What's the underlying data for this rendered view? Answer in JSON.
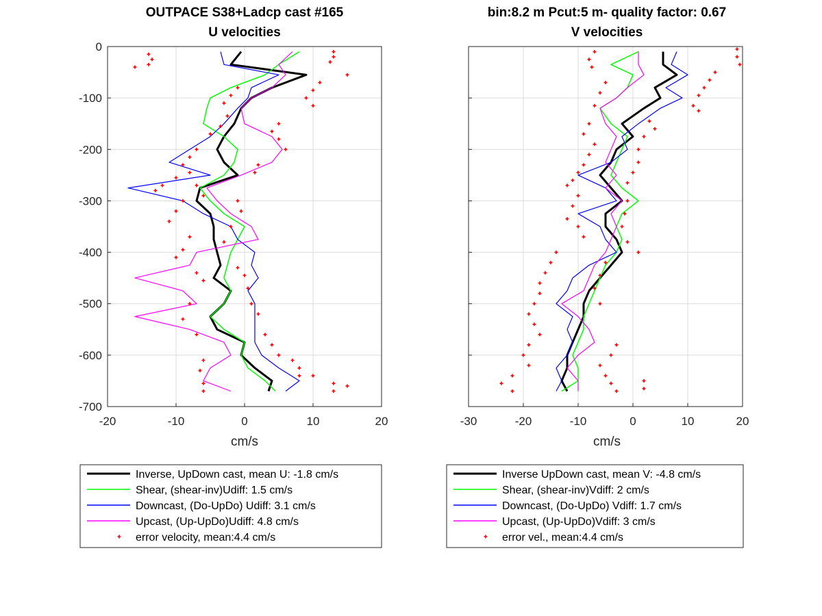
{
  "figure": {
    "background": "#ffffff"
  },
  "legend_items_left": [
    {
      "label": "Inverse, UpDown cast, mean U:  -1.8 cm/s",
      "color": "#000000",
      "style": "thick-line"
    },
    {
      "label": "Shear, (shear-inv)Udiff:  1.5 cm/s",
      "color": "#00ff00",
      "style": "line"
    },
    {
      "label": "Downcast, (Do-UpDo) Udiff:  3.1 cm/s",
      "color": "#0000ff",
      "style": "line"
    },
    {
      "label": "Upcast, (Up-UpDo)Udiff:  4.8 cm/s",
      "color": "#ff00ff",
      "style": "line"
    },
    {
      "label": "error velocity, mean:4.4 cm/s",
      "color": "#ff0000",
      "style": "marker"
    }
  ],
  "legend_items_right": [
    {
      "label": "Inverse UpDown cast, mean V:  -4.8 cm/s",
      "color": "#000000",
      "style": "thick-line"
    },
    {
      "label": "Shear, (shear-inv)Vdiff:  2 cm/s",
      "color": "#00ff00",
      "style": "line"
    },
    {
      "label": "Downcast, (Do-UpDo) Vdiff:  1.7 cm/s",
      "color": "#0000ff",
      "style": "line"
    },
    {
      "label": "Upcast, (Up-UpDo)Vdiff:  3 cm/s",
      "color": "#ff00ff",
      "style": "line"
    },
    {
      "label": "error vel., mean:4.4 cm/s",
      "color": "#ff0000",
      "style": "marker"
    }
  ],
  "chart_data": [
    {
      "type": "line",
      "title": "OUTPACE S38+Ladcp cast #165",
      "subtitle": "U velocities",
      "xlabel": "cm/s",
      "ylabel": "",
      "xlim": [
        -20,
        20
      ],
      "ylim": [
        -700,
        0
      ],
      "xticks": [
        -20,
        -10,
        0,
        10,
        20
      ],
      "yticks": [
        0,
        -100,
        -200,
        -300,
        -400,
        -500,
        -600,
        -700
      ],
      "grid": true,
      "legend_position": "below",
      "depth": [
        -10,
        -35,
        -55,
        -80,
        -100,
        -120,
        -150,
        -175,
        -200,
        -225,
        -250,
        -275,
        -300,
        -325,
        -350,
        -375,
        -400,
        -425,
        -450,
        -475,
        -500,
        -525,
        -550,
        -575,
        -600,
        -625,
        -650,
        -670
      ],
      "series": [
        {
          "name": "Inverse, UpDown cast, mean U:  -1.8 cm/s",
          "color": "#000000",
          "width": 3,
          "values": [
            -0.5,
            -2,
            9,
            4,
            1,
            -0.5,
            -1.5,
            -3,
            -4,
            -3,
            -1,
            -6.5,
            -7,
            -5,
            -4.5,
            -4.5,
            -4,
            -3.5,
            -4.5,
            -2,
            -3,
            -5,
            -4,
            0,
            -0.5,
            1.5,
            4,
            3.5
          ]
        },
        {
          "name": "Shear, (shear-inv)Udiff:  1.5 cm/s",
          "color": "#00ff00",
          "width": 1.5,
          "values": [
            8,
            5,
            3,
            -2,
            -5,
            -5.5,
            -6,
            -3,
            -1,
            -1.5,
            -3,
            -6.5,
            -5,
            -3,
            0,
            -1,
            -2,
            -2.5,
            -3,
            -2,
            -3,
            -5,
            -3,
            0,
            -0.5,
            0.5,
            3,
            4.5
          ]
        },
        {
          "name": "Downcast, (Do-UpDo) Udiff:  3.1 cm/s",
          "color": "#0000ff",
          "width": 1.2,
          "values": [
            -3.5,
            -3,
            5,
            1,
            0.5,
            -1,
            -3,
            -5,
            -8,
            -11,
            -5,
            -17,
            -9,
            -6,
            -2,
            -1,
            1.5,
            1,
            2,
            0.5,
            1.5,
            1.5,
            1.5,
            1.5,
            2.5,
            5,
            8,
            6
          ]
        },
        {
          "name": "Upcast, (Up-UpDo)Udiff:  4.8 cm/s",
          "color": "#ff00ff",
          "width": 1.2,
          "values": [
            7,
            5,
            6,
            4,
            1,
            -0.5,
            0,
            4,
            5.5,
            4,
            -0.5,
            -5.5,
            -4,
            -2,
            1,
            2,
            -7,
            -8,
            -16,
            -9,
            -7,
            -16,
            -8,
            -3,
            -2,
            -5,
            -6,
            -2
          ]
        },
        {
          "name": "error velocity, mean:4.4 cm/s",
          "color": "#ff0000",
          "kind": "scatter",
          "points": [
            [
              -14,
              -15
            ],
            [
              -13.5,
              -25
            ],
            [
              -14,
              -35
            ],
            [
              -16,
              -40
            ],
            [
              13,
              -10
            ],
            [
              13,
              -20
            ],
            [
              12.5,
              -30
            ],
            [
              15,
              -55
            ],
            [
              11,
              -70
            ],
            [
              10,
              -85
            ],
            [
              9,
              -100
            ],
            [
              10,
              -115
            ],
            [
              -1,
              -80
            ],
            [
              -2,
              -95
            ],
            [
              -3,
              -110
            ],
            [
              -2.5,
              -135
            ],
            [
              -3.5,
              -155
            ],
            [
              -5,
              -170
            ],
            [
              5,
              -150
            ],
            [
              4,
              -165
            ],
            [
              5,
              -180
            ],
            [
              6,
              -200
            ],
            [
              -7,
              -200
            ],
            [
              -8,
              -215
            ],
            [
              -9,
              -230
            ],
            [
              -8,
              -245
            ],
            [
              2,
              -230
            ],
            [
              1.5,
              -245
            ],
            [
              -10,
              -255
            ],
            [
              -12,
              -270
            ],
            [
              -13,
              -280
            ],
            [
              -9,
              -300
            ],
            [
              -10,
              -320
            ],
            [
              -11,
              -340
            ],
            [
              -7,
              -270
            ],
            [
              -6,
              -290
            ],
            [
              -1,
              -300
            ],
            [
              -0.5,
              -320
            ],
            [
              -2,
              -350
            ],
            [
              -3,
              -380
            ],
            [
              -8,
              -370
            ],
            [
              -9,
              -395
            ],
            [
              -10,
              -410
            ],
            [
              -7,
              -440
            ],
            [
              -6,
              -455
            ],
            [
              -8,
              -500
            ],
            [
              -9,
              -530
            ],
            [
              -7,
              -560
            ],
            [
              3,
              -560
            ],
            [
              4,
              -580
            ],
            [
              5,
              -600
            ],
            [
              7,
              -610
            ],
            [
              8,
              -625
            ],
            [
              8,
              -640
            ],
            [
              -6,
              -610
            ],
            [
              -6.5,
              -630
            ],
            [
              -6,
              -655
            ],
            [
              -6,
              -670
            ],
            [
              10,
              -640
            ],
            [
              13,
              -655
            ],
            [
              13,
              -670
            ],
            [
              15,
              -660
            ],
            [
              -1,
              -430
            ],
            [
              0,
              -445
            ],
            [
              0.5,
              -470
            ],
            [
              1,
              -500
            ],
            [
              2,
              -520
            ]
          ]
        }
      ]
    },
    {
      "type": "line",
      "title": "bin:8.2 m  Pcut:5 m- quality factor:  0.67",
      "subtitle": "V velocities",
      "xlabel": "cm/s",
      "ylabel": "",
      "xlim": [
        -30,
        20
      ],
      "ylim": [
        -700,
        0
      ],
      "xticks": [
        -30,
        -20,
        -10,
        0,
        10,
        20
      ],
      "yticks": [
        0,
        -100,
        -200,
        -300,
        -400,
        -500,
        -600,
        -700
      ],
      "grid": true,
      "legend_position": "below",
      "depth": [
        -10,
        -35,
        -55,
        -80,
        -100,
        -120,
        -150,
        -175,
        -200,
        -225,
        -250,
        -275,
        -300,
        -325,
        -350,
        -375,
        -400,
        -425,
        -450,
        -475,
        -500,
        -525,
        -550,
        -575,
        -600,
        -625,
        -650,
        -670
      ],
      "series": [
        {
          "name": "Inverse UpDown cast, mean V:  -4.8 cm/s",
          "color": "#000000",
          "width": 3,
          "values": [
            5.5,
            5.5,
            8,
            4,
            5,
            2,
            -2,
            0,
            -3,
            -4,
            -6,
            -4,
            -2,
            -5,
            -5,
            -3,
            -2,
            -4,
            -6,
            -8,
            -9,
            -9,
            -10,
            -11,
            -12,
            -12,
            -13,
            -12
          ]
        },
        {
          "name": "Shear, (shear-inv)Vdiff:  2 cm/s",
          "color": "#00ff00",
          "width": 1.5,
          "values": [
            1,
            -4,
            0,
            -1,
            -3,
            -6,
            -4,
            -1,
            -2,
            -3,
            -4,
            -2,
            1,
            -2,
            -3,
            -2,
            -3,
            -5,
            -6,
            -7,
            -8,
            -9,
            -9,
            -10,
            -11,
            -10,
            -10,
            -13
          ]
        },
        {
          "name": "Downcast, (Do-UpDo) Vdiff:  1.7 cm/s",
          "color": "#0000ff",
          "width": 1.2,
          "values": [
            8,
            7,
            10,
            6,
            9,
            5,
            1,
            -2,
            -1,
            -4,
            -10,
            -5,
            -3,
            -10,
            -6,
            -5,
            -3,
            -8,
            -11,
            -12,
            -14,
            -11,
            -12,
            -11,
            -12,
            -14,
            -13,
            -14
          ]
        },
        {
          "name": "Upcast, (Up-UpDo)Vdiff:  3 cm/s",
          "color": "#ff00ff",
          "width": 1.2,
          "values": [
            1,
            1,
            2,
            -1,
            -3,
            -6,
            -5,
            -3,
            -4,
            -5,
            -3,
            -5,
            -2,
            -4,
            -3,
            -4,
            -5,
            -7,
            -8,
            -9,
            -13,
            -10,
            -8,
            -7,
            -10,
            -12,
            -10,
            -10
          ]
        },
        {
          "name": "error vel., mean:4.4 cm/s",
          "color": "#ff0000",
          "kind": "scatter",
          "points": [
            [
              -7,
              -10
            ],
            [
              -8,
              -25
            ],
            [
              -7.5,
              -40
            ],
            [
              19,
              -5
            ],
            [
              19,
              -20
            ],
            [
              19.5,
              -35
            ],
            [
              15,
              -50
            ],
            [
              14,
              -65
            ],
            [
              13,
              -80
            ],
            [
              12,
              -95
            ],
            [
              11,
              -115
            ],
            [
              12,
              -125
            ],
            [
              -5,
              -70
            ],
            [
              -6,
              -90
            ],
            [
              -7,
              -115
            ],
            [
              -8,
              -150
            ],
            [
              -9,
              -170
            ],
            [
              -7,
              -190
            ],
            [
              3,
              -145
            ],
            [
              4,
              -160
            ],
            [
              2,
              -175
            ],
            [
              1,
              -200
            ],
            [
              -8,
              -210
            ],
            [
              -9,
              -230
            ],
            [
              -10,
              -245
            ],
            [
              -11,
              -260
            ],
            [
              -12,
              -270
            ],
            [
              1,
              -225
            ],
            [
              0,
              -245
            ],
            [
              -1,
              -265
            ],
            [
              -10,
              -290
            ],
            [
              -11,
              -310
            ],
            [
              -12,
              -335
            ],
            [
              -10,
              -350
            ],
            [
              -9,
              -370
            ],
            [
              -1,
              -300
            ],
            [
              -1.5,
              -325
            ],
            [
              -2,
              -350
            ],
            [
              -1,
              -380
            ],
            [
              1,
              -400
            ],
            [
              -14,
              -400
            ],
            [
              -15,
              -420
            ],
            [
              -16,
              -440
            ],
            [
              -17,
              -460
            ],
            [
              -17,
              -480
            ],
            [
              -18,
              -500
            ],
            [
              -19,
              -520
            ],
            [
              -18,
              -540
            ],
            [
              -17,
              -560
            ],
            [
              -19,
              -580
            ],
            [
              -20,
              -600
            ],
            [
              -19,
              -620
            ],
            [
              -22,
              -640
            ],
            [
              -24,
              -655
            ],
            [
              -22,
              -670
            ],
            [
              -3,
              -580
            ],
            [
              -4,
              -600
            ],
            [
              -6,
              -620
            ],
            [
              -5,
              -640
            ],
            [
              -4,
              -655
            ],
            [
              -3,
              -670
            ],
            [
              2,
              -650
            ],
            [
              2,
              -665
            ],
            [
              -5,
              -420
            ],
            [
              -6,
              -445
            ],
            [
              -7,
              -470
            ],
            [
              -6,
              -500
            ]
          ]
        }
      ]
    }
  ]
}
